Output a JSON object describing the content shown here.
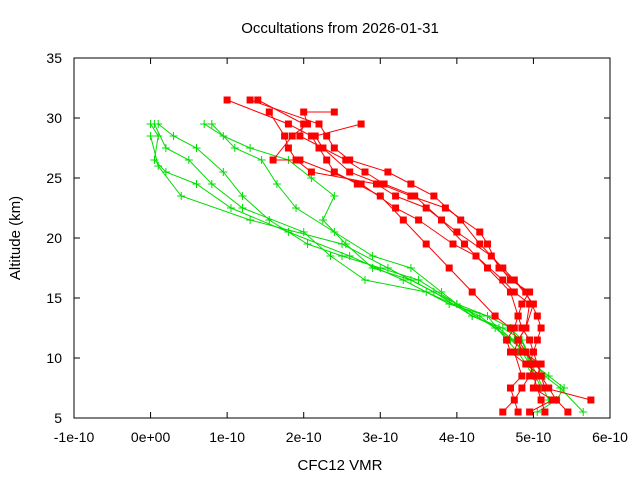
{
  "chart_data": {
    "type": "line",
    "title": "Occultations from 2026-01-31",
    "xlabel": "CFC12 VMR",
    "ylabel": "Altitude (km)",
    "xlim": [
      -1e-10,
      6e-10
    ],
    "ylim": [
      5,
      35
    ],
    "x_ticks": [
      -1e-10,
      0,
      1e-10,
      2e-10,
      3e-10,
      4e-10,
      5e-10,
      6e-10
    ],
    "x_tick_labels": [
      "-1e-10",
      "0e+00",
      "1e-10",
      "2e-10",
      "3e-10",
      "4e-10",
      "5e-10",
      "6e-10"
    ],
    "y_ticks": [
      5,
      10,
      15,
      20,
      25,
      30,
      35
    ],
    "y_tick_labels": [
      "5",
      "10",
      "15",
      "20",
      "25",
      "30",
      "35"
    ],
    "grid": false,
    "legend": "none",
    "series": [
      {
        "name": "red-profile-1",
        "color": "#ff0000",
        "marker": "square",
        "x": [
          4.6e-10,
          4.75e-10,
          4.85e-10,
          4.95e-10,
          5e-10,
          4.9e-10,
          4.8e-10,
          4.7e-10,
          4.5e-10,
          4.2e-10,
          3.9e-10,
          3.6e-10,
          3.3e-10,
          3e-10,
          2.7e-10,
          2.4e-10,
          2.3e-10,
          2.2e-10,
          2.1e-10,
          1.8e-10,
          1e-10
        ],
        "y": [
          5.5,
          6.5,
          7.5,
          8.5,
          9.5,
          10.5,
          11.5,
          12.5,
          13.5,
          15.5,
          17.5,
          19.5,
          21.5,
          23.5,
          24.5,
          25.5,
          26.5,
          27.5,
          28.5,
          29.5,
          31.5
        ]
      },
      {
        "name": "red-profile-2",
        "color": "#ff0000",
        "marker": "square",
        "x": [
          5.15e-10,
          5.1e-10,
          5.05e-10,
          5e-10,
          4.95e-10,
          5e-10,
          5.05e-10,
          5.1e-10,
          5.05e-10,
          4.9e-10,
          4.6e-10,
          4.3e-10,
          4.05e-10,
          3.7e-10,
          3.4e-10,
          3.1e-10,
          2.6e-10,
          2.4e-10,
          2.3e-10,
          2.2e-10,
          1.3e-10
        ],
        "y": [
          5.5,
          6.5,
          7.5,
          8.5,
          9.5,
          10.5,
          11.5,
          12.5,
          13.5,
          15.5,
          17.5,
          19.5,
          21.5,
          23.5,
          24.5,
          25.5,
          26.5,
          27.5,
          28.5,
          29.5,
          31.5
        ]
      },
      {
        "name": "red-profile-3",
        "color": "#ff0000",
        "marker": "square",
        "x": [
          5.45e-10,
          5.3e-10,
          5.2e-10,
          5.1e-10,
          5.05e-10,
          5e-10,
          4.95e-10,
          4.85e-10,
          4.8e-10,
          4.7e-10,
          4.4e-10,
          4.1e-10,
          3.8e-10,
          3.45e-10,
          3.05e-10,
          2.8e-10,
          2.55e-10,
          2.25e-10,
          1.95e-10,
          2e-10,
          1.4e-10
        ],
        "y": [
          5.5,
          6.5,
          7.5,
          8.5,
          9.5,
          10.5,
          11.5,
          12.5,
          13.5,
          15.5,
          17.5,
          19.5,
          21.5,
          23.5,
          24.5,
          25.5,
          26.5,
          27.5,
          28.5,
          29.5,
          31.5
        ]
      },
      {
        "name": "red-profile-4",
        "color": "#ff0000",
        "marker": "square",
        "x": [
          5.75e-10,
          5.15e-10,
          5.1e-10,
          4.9e-10,
          4.7e-10,
          4.65e-10,
          4.75e-10,
          4.8e-10,
          4.85e-10,
          4.95e-10,
          4.7e-10,
          4.45e-10,
          4e-10,
          3.6e-10,
          3.2e-10,
          2.95e-10,
          2.1e-10,
          1.9e-10,
          1.8e-10,
          1.75e-10,
          1.55e-10
        ],
        "y": [
          6.5,
          7.5,
          8.5,
          9.5,
          10.5,
          11.5,
          12.5,
          13.5,
          14.5,
          15.5,
          16.5,
          18.5,
          20.5,
          22.5,
          23.5,
          24.5,
          25.5,
          26.5,
          27.5,
          28.5,
          30.5
        ]
      },
      {
        "name": "red-profile-5",
        "color": "#ff0000",
        "marker": "square",
        "x": [
          4.8e-10,
          4.7e-10,
          4.85e-10,
          4.75e-10,
          4.8e-10,
          4.9e-10,
          4.95e-10,
          4.75e-10,
          4.6e-10,
          4.25e-10,
          3.95e-10,
          3.5e-10,
          3.2e-10,
          2.75e-10,
          1.95e-10,
          1.6e-10,
          1.85e-10,
          2.05e-10,
          2e-10,
          2.4e-10
        ],
        "y": [
          5.5,
          7.5,
          8.5,
          10.5,
          11.5,
          12.5,
          14.5,
          15.5,
          16.5,
          18.5,
          19.5,
          21.5,
          22.5,
          24.5,
          26.5,
          26.5,
          28.5,
          29.5,
          30.5,
          30.5
        ]
      },
      {
        "name": "red-profile-6",
        "color": "#ff0000",
        "marker": "square",
        "x": [
          4.95e-10,
          5.25e-10,
          5e-10,
          5.1e-10,
          4.85e-10,
          4.8e-10,
          4.9e-10,
          5e-10,
          4.75e-10,
          4.55e-10,
          4.4e-10,
          4.3e-10,
          3.85e-10,
          3.4e-10,
          3e-10,
          2.6e-10,
          2.25e-10,
          2.15e-10,
          2.75e-10
        ],
        "y": [
          5.5,
          6.5,
          7.5,
          9.5,
          10.5,
          11.5,
          12.5,
          14.5,
          16.5,
          17.5,
          19.5,
          20.5,
          22.5,
          23.5,
          24.5,
          25.5,
          27.5,
          28.5,
          29.5
        ]
      }
    ],
    "green_series": [
      {
        "name": "green-profile-1",
        "color": "#00dd00",
        "marker": "plus",
        "x": [
          5.05e-10,
          5.3e-10,
          5.4e-10,
          5.2e-10,
          5e-10,
          4.85e-10,
          4.7e-10,
          4.4e-10,
          3.9e-10,
          3.3e-10,
          2.6e-10,
          1.8e-10,
          1.05e-10,
          6e-11,
          2e-11,
          5e-12,
          1e-11,
          0.0
        ],
        "y": [
          5.5,
          6.5,
          7.5,
          8.5,
          9.5,
          11.5,
          12.5,
          13.5,
          14.5,
          16.5,
          18.5,
          20.5,
          22.5,
          24.5,
          25.5,
          26.5,
          28.5,
          29.5
        ]
      },
      {
        "name": "green-profile-2",
        "color": "#00dd00",
        "marker": "plus",
        "x": [
          5.65e-10,
          5.35e-10,
          5.15e-10,
          4.9e-10,
          4.55e-10,
          4.2e-10,
          3.7e-10,
          3.1e-10,
          2.5e-10,
          1.3e-10,
          4e-11,
          1e-11,
          0.0
        ],
        "y": [
          5.5,
          7.5,
          8.5,
          10.5,
          12.5,
          13.5,
          15.5,
          17.5,
          19.5,
          21.5,
          23.5,
          26.0,
          28.5
        ]
      },
      {
        "name": "green-profile-3",
        "color": "#00dd00",
        "marker": "plus",
        "x": [
          5.2e-10,
          5.05e-10,
          4.9e-10,
          4.7e-10,
          4.3e-10,
          3.6e-10,
          2.8e-10,
          2.35e-10,
          2e-10,
          1.2e-10,
          8e-11,
          5e-11,
          2e-11,
          5e-12
        ],
        "y": [
          6.5,
          8.5,
          10.5,
          11.5,
          13.5,
          15.5,
          16.5,
          18.5,
          20.5,
          22.5,
          24.5,
          26.5,
          27.5,
          29.5
        ]
      },
      {
        "name": "green-profile-4",
        "color": "#00dd00",
        "marker": "plus",
        "x": [
          5.1e-10,
          4.95e-10,
          4.75e-10,
          4.5e-10,
          4e-10,
          3.4e-10,
          2.9e-10,
          2.55e-10,
          2.25e-10,
          2.4e-10,
          2.1e-10,
          1.8e-10,
          1.3e-10,
          9.5e-11,
          7e-11
        ],
        "y": [
          7.5,
          9.5,
          11.5,
          12.5,
          14.5,
          16.5,
          17.5,
          19.5,
          21.5,
          23.5,
          25.0,
          26.5,
          27.5,
          28.5,
          29.5
        ]
      },
      {
        "name": "green-profile-5",
        "color": "#00dd00",
        "marker": "plus",
        "x": [
          5e-10,
          4.8e-10,
          4.65e-10,
          4.4e-10,
          4e-10,
          3.5e-10,
          3e-10,
          2.5e-10,
          2.05e-10,
          1.55e-10,
          1.2e-10,
          9.5e-11,
          6e-11,
          3e-11,
          1e-11
        ],
        "y": [
          8.5,
          10.5,
          11.5,
          13.5,
          14.5,
          16.5,
          17.5,
          18.5,
          19.5,
          21.5,
          23.5,
          25.5,
          27.5,
          28.5,
          29.5
        ]
      },
      {
        "name": "green-profile-6",
        "color": "#00dd00",
        "marker": "plus",
        "x": [
          4.95e-10,
          4.85e-10,
          4.6e-10,
          4.2e-10,
          3.8e-10,
          3.4e-10,
          2.9e-10,
          2.4e-10,
          1.9e-10,
          1.65e-10,
          1.45e-10,
          1.1e-10,
          8e-11
        ],
        "y": [
          9.5,
          11.5,
          12.5,
          13.5,
          15.5,
          17.5,
          18.5,
          20.5,
          22.5,
          24.5,
          26.5,
          27.5,
          29.5
        ]
      }
    ],
    "colors": {
      "red": "#ff0000",
      "green": "#00dd00",
      "axis": "#000000",
      "background": "#ffffff"
    }
  }
}
